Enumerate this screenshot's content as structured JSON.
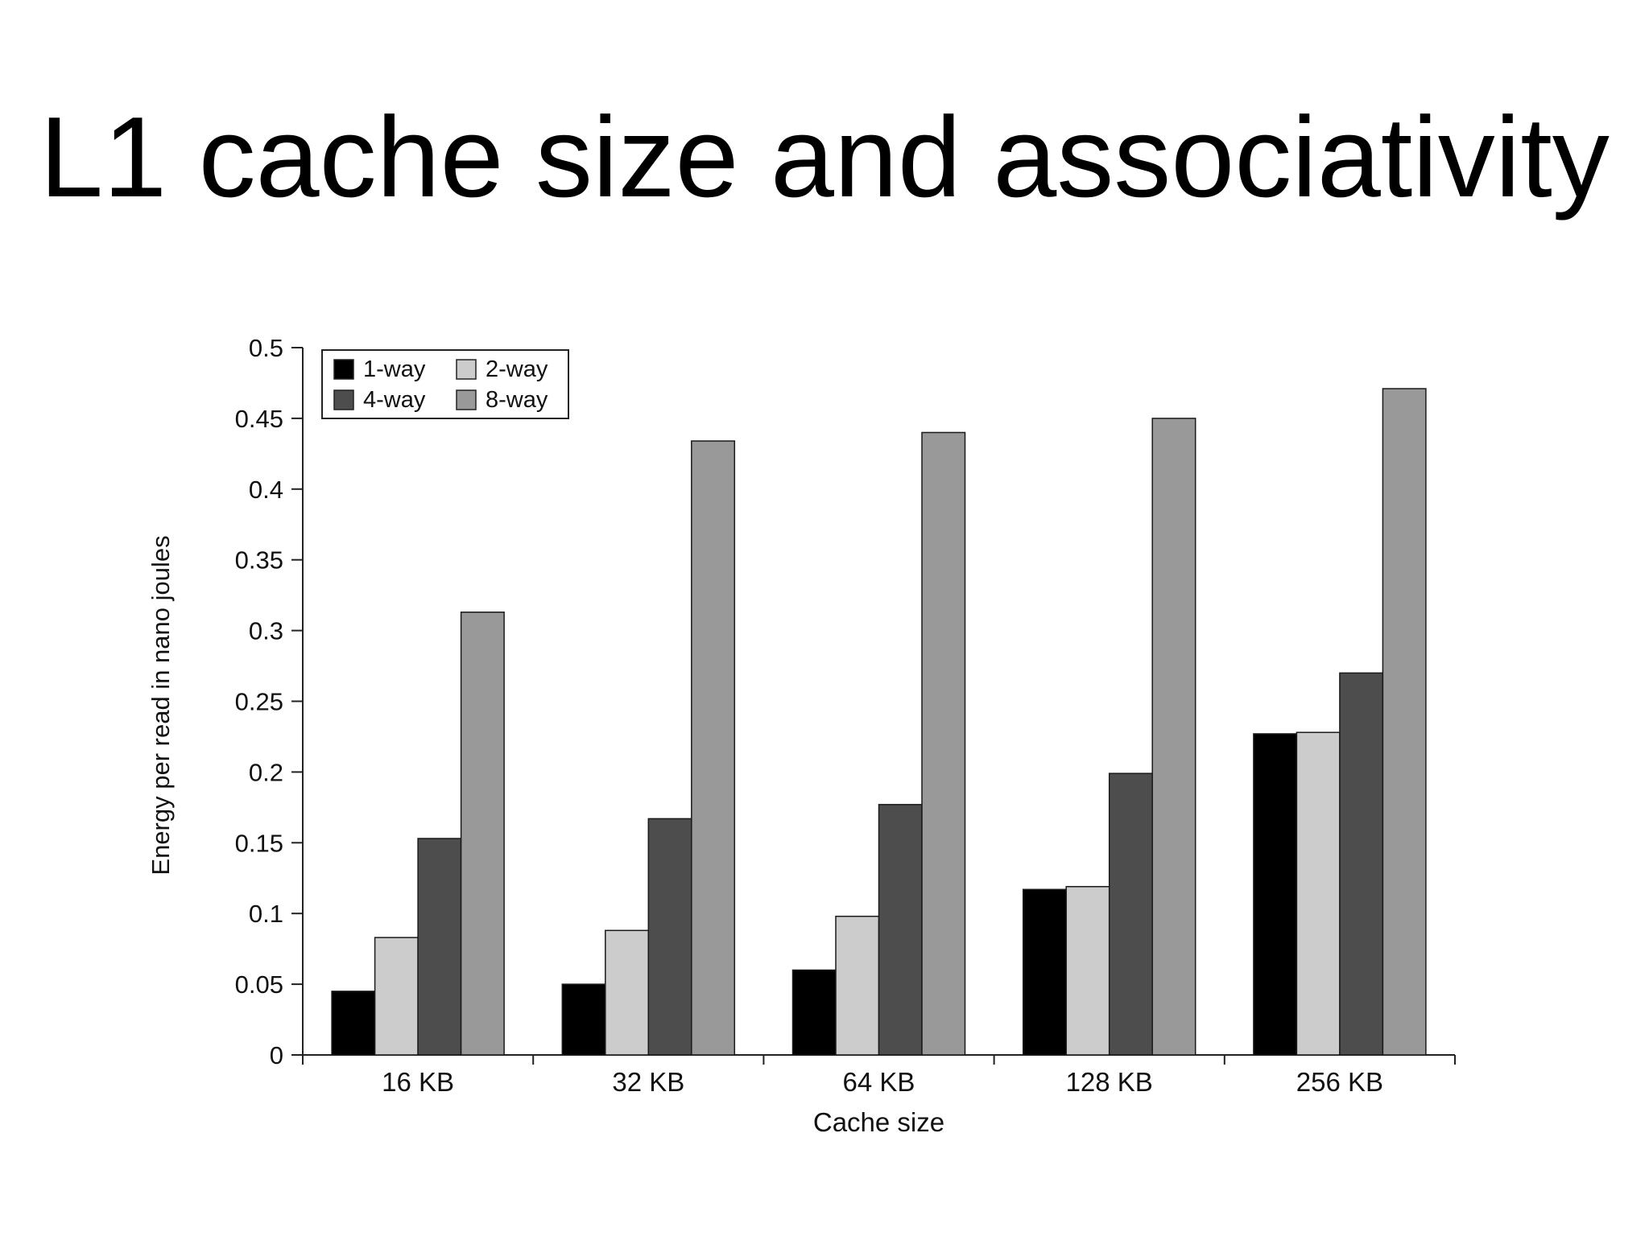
{
  "slide": {
    "title": "L1 cache size and associativity"
  },
  "chart_data": {
    "type": "bar",
    "title": "",
    "xlabel": "Cache size",
    "ylabel": "Energy per read in nano joules",
    "categories": [
      "16 KB",
      "32 KB",
      "64 KB",
      "128 KB",
      "256 KB"
    ],
    "ylim": [
      0,
      0.5
    ],
    "yticks": [
      "0",
      "0.05",
      "0.1",
      "0.15",
      "0.2",
      "0.25",
      "0.3",
      "0.35",
      "0.4",
      "0.45",
      "0.5"
    ],
    "legend": "top-left",
    "grid": false,
    "series": [
      {
        "name": "1-way",
        "color": "#000000",
        "values": [
          0.045,
          0.05,
          0.06,
          0.117,
          0.227
        ]
      },
      {
        "name": "2-way",
        "color": "#cccccc",
        "values": [
          0.083,
          0.088,
          0.098,
          0.119,
          0.228
        ]
      },
      {
        "name": "4-way",
        "color": "#4d4d4d",
        "values": [
          0.153,
          0.167,
          0.177,
          0.199,
          0.27
        ]
      },
      {
        "name": "8-way",
        "color": "#999999",
        "values": [
          0.313,
          0.434,
          0.44,
          0.45,
          0.471
        ]
      }
    ]
  }
}
